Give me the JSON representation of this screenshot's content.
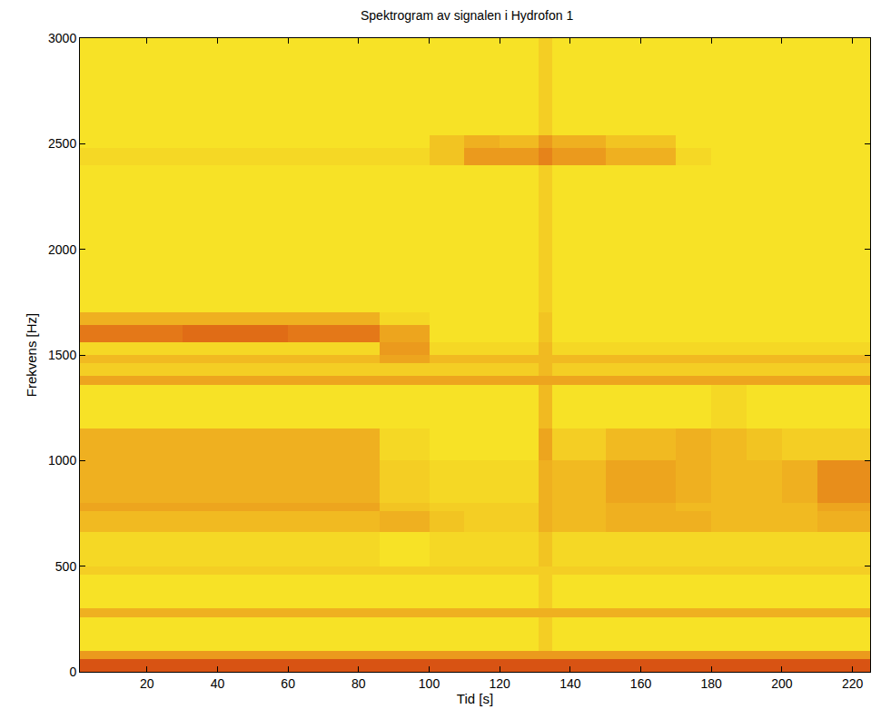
{
  "chart_data": {
    "type": "heatmap",
    "title": "Spektrogram av signalen i Hydrofon 1",
    "x_label": "Tid [s]",
    "y_label": "Frekvens [Hz]",
    "x": [
      1,
      10,
      20,
      30,
      40,
      50,
      60,
      70,
      80,
      86,
      100,
      110,
      120,
      131,
      135,
      150,
      170,
      180,
      190,
      200,
      210,
      225
    ],
    "y": [
      0,
      60,
      100,
      260,
      300,
      460,
      500,
      660,
      760,
      800,
      1000,
      1150,
      1360,
      1400,
      1460,
      1500,
      1560,
      1640,
      1700,
      2400,
      2480,
      2540,
      3000
    ],
    "z": [
      [
        9,
        9,
        9,
        9,
        9,
        9,
        9,
        9,
        9,
        9,
        9,
        9,
        9,
        9,
        9,
        9,
        9,
        9,
        9,
        9,
        9
      ],
      [
        6,
        6,
        6,
        6,
        6,
        6,
        6,
        6,
        6,
        6,
        6,
        6,
        6,
        6,
        6,
        6,
        6,
        6,
        6,
        6,
        6
      ],
      [
        2.5,
        2.5,
        2.5,
        2.5,
        2.5,
        2.5,
        2.5,
        2.5,
        2.5,
        2.5,
        2.5,
        2.5,
        2.5,
        3.5,
        2.5,
        2.5,
        2.5,
        2.5,
        2.5,
        2.5,
        2.5
      ],
      [
        5,
        5,
        5,
        5,
        5,
        5,
        5,
        5,
        5,
        5,
        5,
        5,
        5,
        5,
        5,
        5,
        5,
        5,
        5,
        5,
        5
      ],
      [
        2.5,
        2.5,
        2.5,
        2.5,
        2.5,
        2.5,
        2.5,
        2.5,
        2.5,
        2.5,
        2.5,
        2.5,
        2.5,
        3.5,
        2.5,
        2.5,
        2.5,
        2.5,
        2.5,
        2.5,
        2.5
      ],
      [
        3.5,
        3.5,
        3.5,
        3.5,
        3.5,
        3.5,
        3.5,
        3.5,
        3.5,
        3.5,
        3.5,
        3.5,
        3.5,
        3.5,
        3.5,
        3.5,
        3.5,
        3.5,
        3.5,
        3.5,
        3.5
      ],
      [
        3,
        3,
        3,
        3,
        3,
        3,
        3,
        3,
        3,
        2.5,
        3,
        3,
        3,
        4,
        3,
        3,
        3,
        3,
        3,
        3,
        3
      ],
      [
        4.5,
        4.5,
        4.5,
        4.5,
        4.5,
        4.5,
        4.5,
        4.5,
        4.5,
        5,
        4,
        3.5,
        3.5,
        5,
        4.5,
        5,
        5,
        4.5,
        4.5,
        4.5,
        5
      ],
      [
        5.5,
        5.5,
        5.5,
        5.5,
        5.5,
        5.5,
        5.5,
        5.5,
        5.5,
        4,
        3.5,
        3.5,
        3.5,
        5,
        4.5,
        5,
        4.5,
        4.5,
        4.5,
        4.5,
        5.5
      ],
      [
        5,
        5,
        5,
        5,
        5,
        5,
        5,
        5,
        5,
        3.5,
        3,
        3,
        3,
        5,
        4.5,
        5.5,
        5,
        4.5,
        4.5,
        5,
        6.5
      ],
      [
        5,
        5,
        5,
        5,
        5,
        5,
        5,
        5,
        5,
        3,
        2.5,
        2.5,
        2.5,
        5.5,
        3.5,
        4.5,
        5,
        4.5,
        4,
        3.5,
        3.5
      ],
      [
        2.5,
        2.5,
        2.5,
        2.5,
        2.5,
        2.5,
        2.5,
        2.5,
        2.5,
        2.5,
        2.5,
        2.5,
        2.5,
        4.5,
        2.5,
        2.5,
        2.5,
        3,
        2.5,
        2.5,
        2.5
      ],
      [
        5.5,
        5.5,
        5.5,
        5.5,
        5.5,
        5.5,
        5.5,
        5.5,
        5.5,
        5.5,
        5.5,
        5.5,
        5.5,
        5.5,
        5.5,
        5.5,
        5.5,
        5.5,
        5.5,
        5.5,
        5.5
      ],
      [
        3.5,
        3.5,
        3.5,
        3.5,
        3.5,
        3.5,
        3.5,
        3.5,
        3.5,
        3.5,
        3.5,
        3.5,
        3.5,
        4.5,
        3.5,
        3.5,
        3.5,
        3.5,
        3.5,
        3.5,
        3.5
      ],
      [
        4.5,
        4.5,
        4.5,
        4.5,
        4.5,
        4.5,
        4.5,
        4.5,
        4.5,
        5.5,
        4.5,
        4.5,
        4.5,
        4.5,
        4.5,
        4.5,
        4.5,
        4.5,
        4.5,
        4.5,
        4.5
      ],
      [
        3,
        3,
        3,
        3,
        3,
        3,
        3,
        3,
        3,
        6,
        3,
        3,
        3,
        4.5,
        3,
        3,
        3,
        3,
        3,
        3,
        3
      ],
      [
        7.5,
        7.5,
        7.5,
        8,
        8,
        8,
        7.5,
        7.5,
        7.5,
        5.5,
        2.5,
        2.5,
        2.5,
        4,
        2.5,
        2.5,
        2.5,
        2.5,
        2.5,
        2.5,
        2.5
      ],
      [
        5,
        5,
        5,
        5,
        5,
        5,
        5,
        5,
        5,
        3,
        2.5,
        2.5,
        2.5,
        4,
        2.5,
        2.5,
        2.5,
        2.5,
        2.5,
        2.5,
        2.5
      ],
      [
        2.5,
        2.5,
        2.5,
        2.5,
        2.5,
        2.5,
        2.5,
        2.5,
        2.5,
        2.5,
        2.5,
        2.5,
        2.5,
        3.5,
        2.5,
        2.5,
        2.5,
        2.5,
        2.5,
        2.5,
        2.5
      ],
      [
        3,
        3,
        3,
        3,
        3,
        3,
        3,
        3,
        3,
        3,
        4,
        6,
        6,
        7,
        6,
        5,
        3,
        2.5,
        2.5,
        2.5,
        2.5
      ],
      [
        2.5,
        2.5,
        2.5,
        2.5,
        2.5,
        2.5,
        2.5,
        2.5,
        2.5,
        2.5,
        4,
        5,
        4.5,
        6,
        5,
        4,
        2.5,
        2.5,
        2.5,
        2.5,
        2.5
      ],
      [
        2.5,
        2.5,
        2.5,
        2.5,
        2.5,
        2.5,
        2.5,
        2.5,
        2.5,
        2.5,
        2.5,
        2.5,
        2.5,
        3.5,
        2.5,
        2.5,
        2.5,
        2.5,
        2.5,
        2.5,
        2.5
      ]
    ],
    "zlim": [
      0,
      10
    ],
    "xlim": [
      1,
      225
    ],
    "ylim": [
      0,
      3000
    ],
    "xticks": [
      20,
      40,
      60,
      80,
      100,
      120,
      140,
      160,
      180,
      200,
      220
    ],
    "yticks": [
      0,
      500,
      1000,
      1500,
      2000,
      2500,
      3000
    ],
    "grid": false
  }
}
